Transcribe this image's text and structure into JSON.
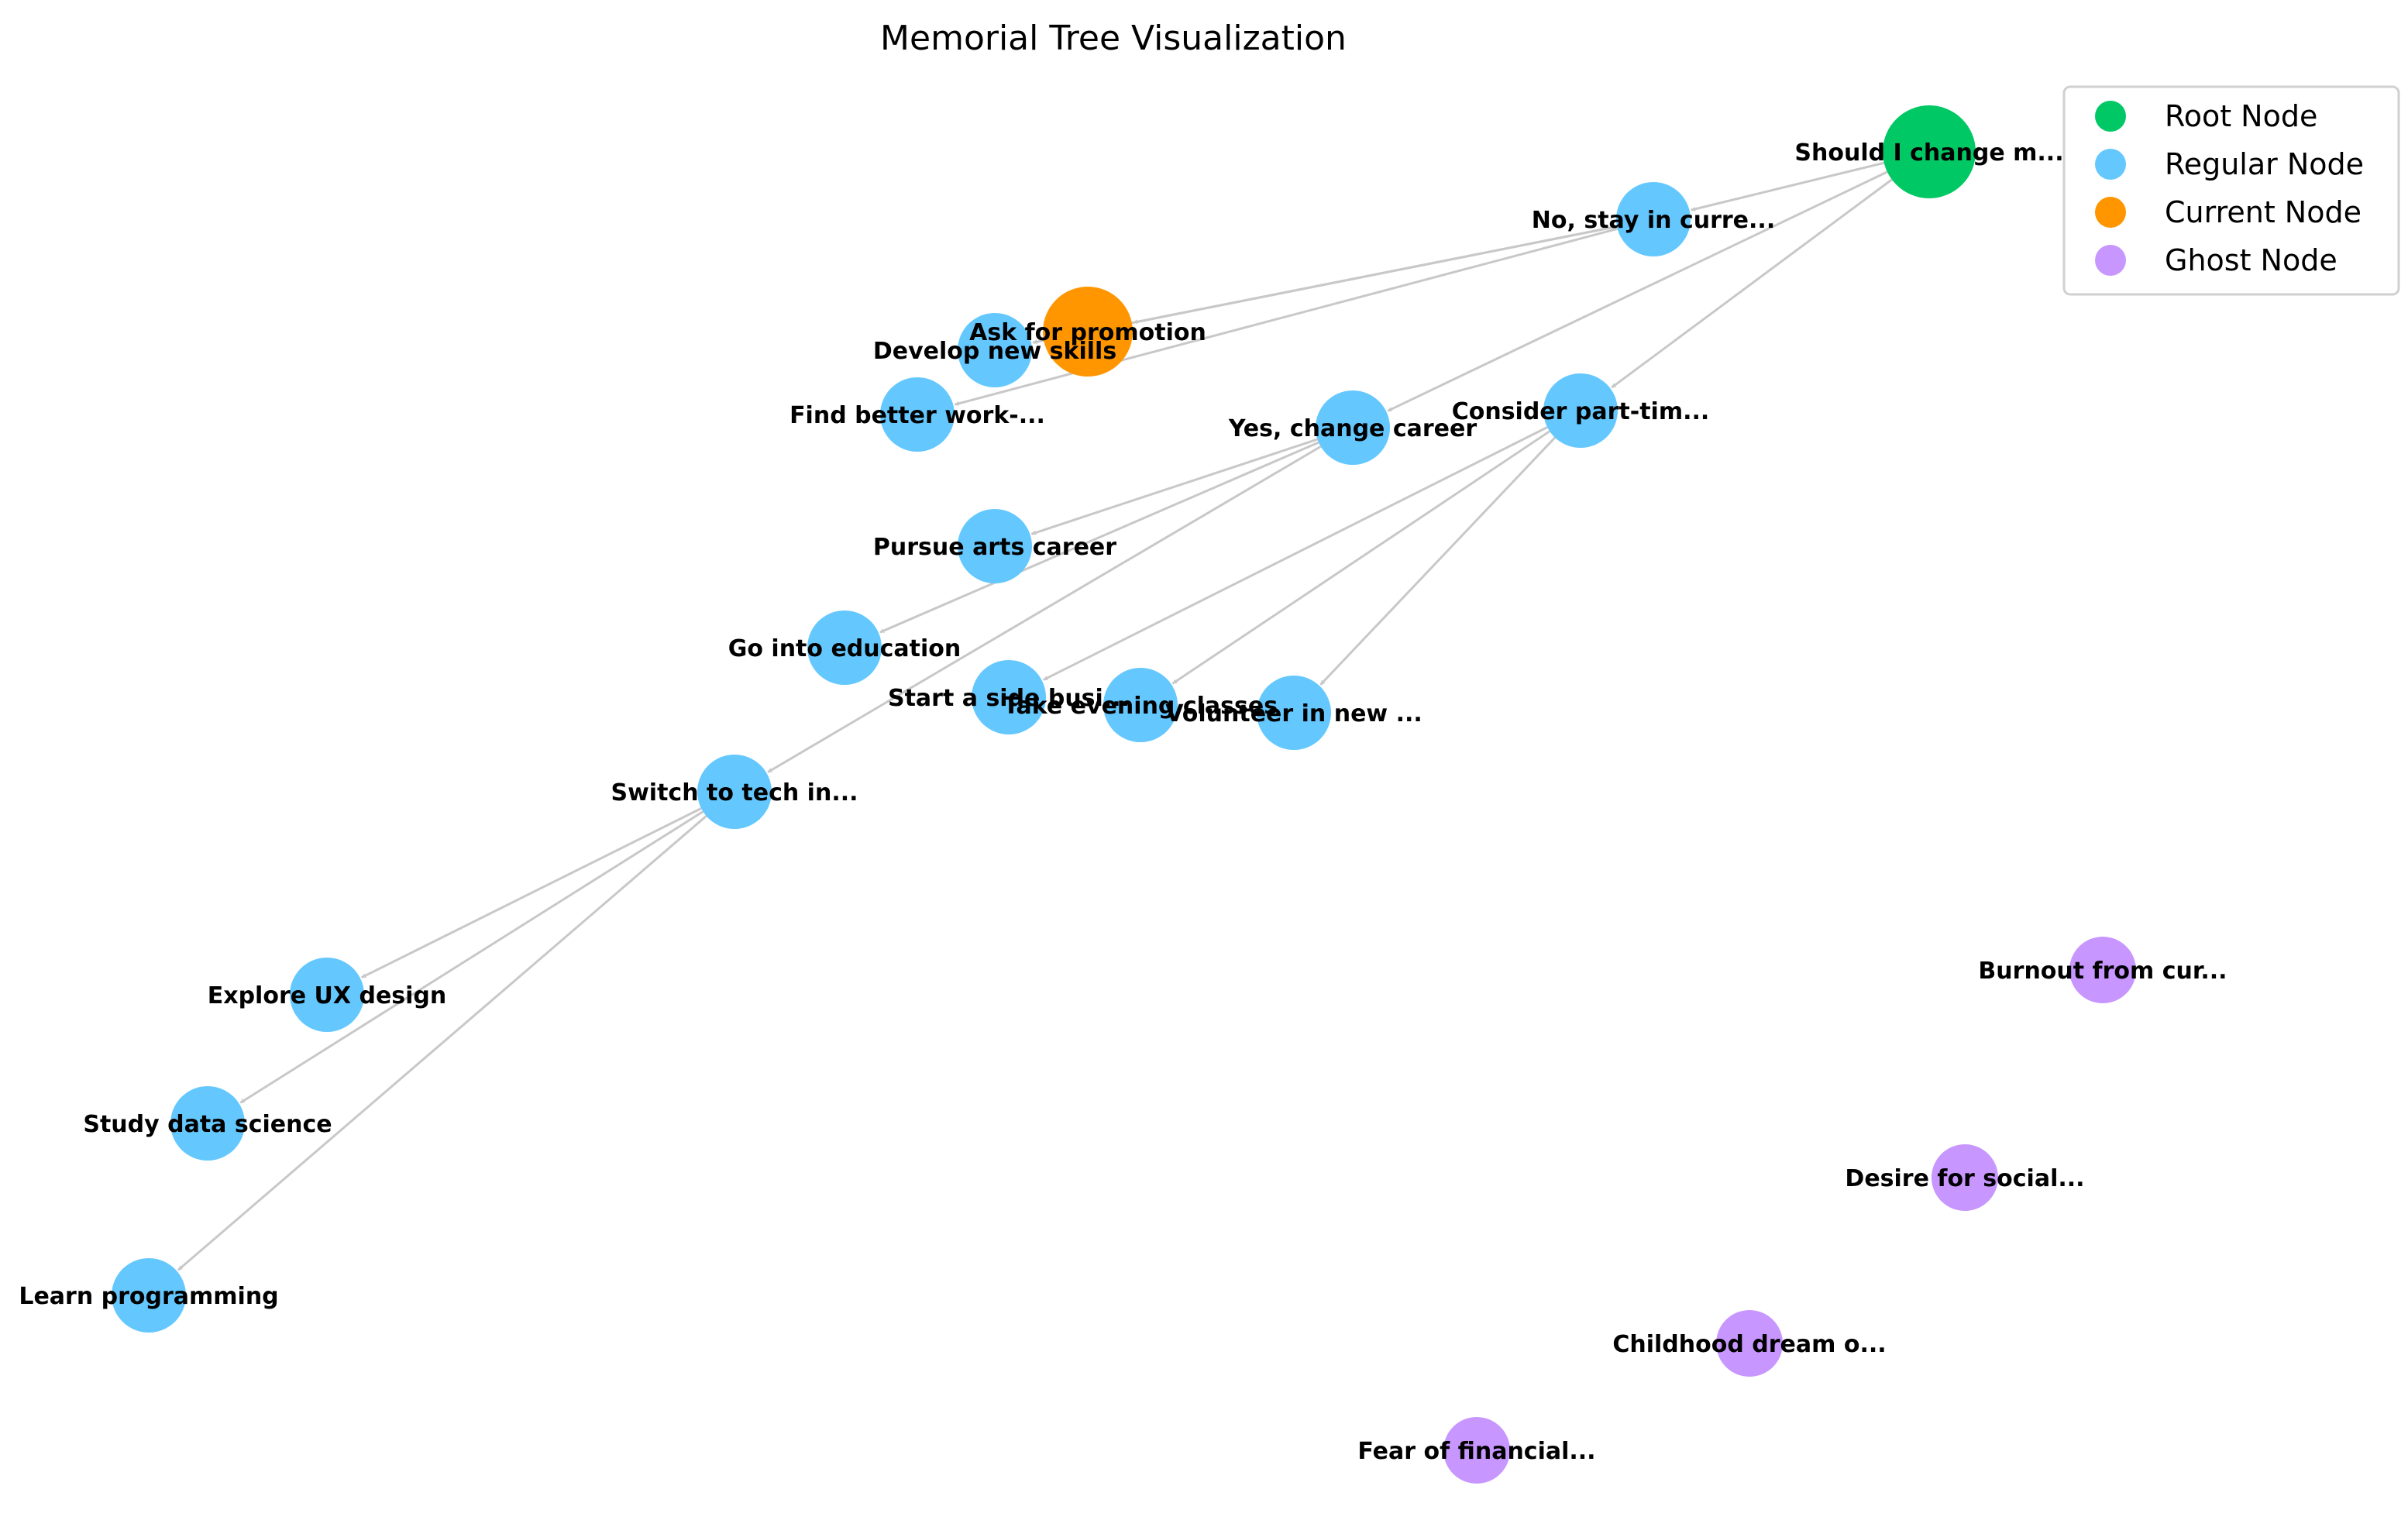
{
  "title": "Memorial Tree Visualization",
  "colors": {
    "root": "#00c864",
    "regular": "#64c8ff",
    "current": "#ff9600",
    "ghost": "#c896ff",
    "edge": "#c8c8c8"
  },
  "legend": [
    {
      "key": "root",
      "label": "Root Node"
    },
    {
      "key": "regular",
      "label": "Regular Node"
    },
    {
      "key": "current",
      "label": "Current Node"
    },
    {
      "key": "ghost",
      "label": "Ghost Node"
    }
  ],
  "nodes": [
    {
      "id": "root",
      "label": "Should I change m...",
      "kind": "root"
    },
    {
      "id": "no_stay",
      "label": "No, stay in curre...",
      "kind": "regular"
    },
    {
      "id": "promotion",
      "label": "Ask for promotion",
      "kind": "current"
    },
    {
      "id": "skills",
      "label": "Develop new skills",
      "kind": "regular"
    },
    {
      "id": "better_work",
      "label": "Find better work-...",
      "kind": "regular"
    },
    {
      "id": "yes_change",
      "label": "Yes, change career",
      "kind": "regular"
    },
    {
      "id": "part_time",
      "label": "Consider part-tim...",
      "kind": "regular"
    },
    {
      "id": "arts",
      "label": "Pursue arts career",
      "kind": "regular"
    },
    {
      "id": "education",
      "label": "Go into education",
      "kind": "regular"
    },
    {
      "id": "side_business",
      "label": "Start a side busi...",
      "kind": "regular"
    },
    {
      "id": "evening",
      "label": "Take evening classes",
      "kind": "regular"
    },
    {
      "id": "volunteer",
      "label": "Volunteer in new ...",
      "kind": "regular"
    },
    {
      "id": "tech",
      "label": "Switch to tech in...",
      "kind": "regular"
    },
    {
      "id": "ux",
      "label": "Explore UX design",
      "kind": "regular"
    },
    {
      "id": "data_science",
      "label": "Study data science",
      "kind": "regular"
    },
    {
      "id": "programming",
      "label": "Learn programming",
      "kind": "regular"
    },
    {
      "id": "burnout",
      "label": "Burnout from cur...",
      "kind": "ghost"
    },
    {
      "id": "social",
      "label": "Desire for social...",
      "kind": "ghost"
    },
    {
      "id": "childhood",
      "label": "Childhood dream o...",
      "kind": "ghost"
    },
    {
      "id": "fear",
      "label": "Fear of financial...",
      "kind": "ghost"
    }
  ],
  "edges": [
    [
      "root",
      "no_stay"
    ],
    [
      "root",
      "yes_change"
    ],
    [
      "root",
      "part_time"
    ],
    [
      "no_stay",
      "promotion"
    ],
    [
      "no_stay",
      "skills"
    ],
    [
      "no_stay",
      "better_work"
    ],
    [
      "yes_change",
      "arts"
    ],
    [
      "yes_change",
      "education"
    ],
    [
      "yes_change",
      "tech"
    ],
    [
      "part_time",
      "side_business"
    ],
    [
      "part_time",
      "evening"
    ],
    [
      "part_time",
      "volunteer"
    ],
    [
      "tech",
      "ux"
    ],
    [
      "tech",
      "data_science"
    ],
    [
      "tech",
      "programming"
    ]
  ]
}
